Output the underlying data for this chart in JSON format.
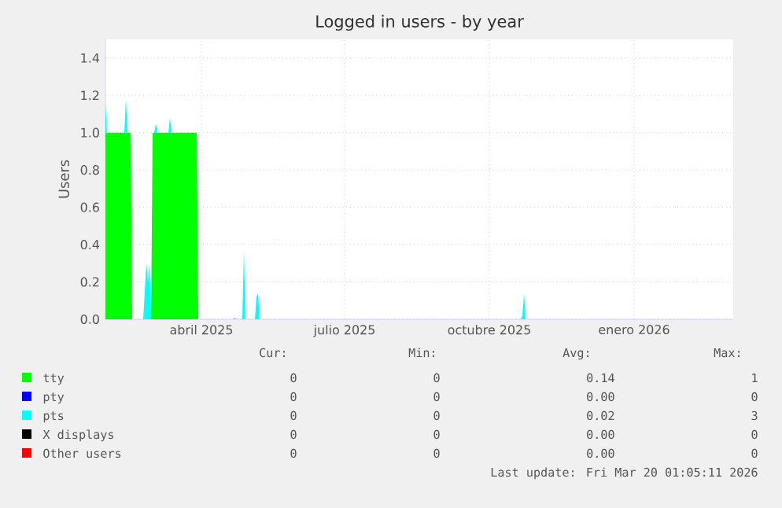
{
  "chart_data": {
    "type": "area",
    "stacked": true,
    "title": "Logged in users - by year",
    "ylabel": "Users",
    "x": [
      "2025-02-14",
      "2025-02-15",
      "2025-02-26",
      "2025-02-27",
      "2025-02-28",
      "2025-03-02",
      "2025-03-03",
      "2025-03-10",
      "2025-03-11",
      "2025-03-12",
      "2025-03-13",
      "2025-03-14",
      "2025-03-15",
      "2025-03-16",
      "2025-03-17",
      "2025-03-18",
      "2025-03-19",
      "2025-03-26",
      "2025-03-27",
      "2025-03-28",
      "2025-04-13",
      "2025-04-14",
      "2025-05-06",
      "2025-05-07",
      "2025-05-08",
      "2025-05-12",
      "2025-05-13",
      "2025-05-14",
      "2025-05-20",
      "2025-05-21",
      "2025-05-22",
      "2025-05-23",
      "2025-11-05",
      "2025-11-06",
      "2025-11-07",
      "2025-11-08",
      "2026-03-20"
    ],
    "series": [
      {
        "name": "tty",
        "color": "#00ff00",
        "values": [
          1,
          1,
          1,
          1,
          1,
          1,
          0,
          0,
          0,
          0,
          0,
          0,
          0,
          1,
          1,
          1,
          1,
          1,
          1,
          1,
          1,
          0,
          0,
          0,
          0,
          0,
          0,
          0,
          0,
          0,
          0,
          0,
          0,
          0,
          0,
          0,
          0
        ]
      },
      {
        "name": "pty",
        "color": "#0000ff",
        "values": [
          null,
          null,
          null,
          null,
          null,
          null,
          null,
          null,
          null,
          null,
          null,
          null,
          null,
          null,
          null,
          null,
          null,
          null,
          null,
          null,
          null,
          null,
          null,
          null,
          null,
          null,
          null,
          null,
          null,
          null,
          null,
          null,
          null,
          null,
          null,
          null,
          null
        ]
      },
      {
        "name": "pts",
        "color": "#00ffff",
        "values": [
          0.15,
          0,
          0,
          0.18,
          0,
          0,
          0,
          0,
          0.15,
          0.3,
          0.2,
          0.3,
          0,
          0,
          0,
          0.05,
          0,
          0,
          0.08,
          0,
          0,
          0,
          0,
          0.01,
          0,
          0,
          0.37,
          0,
          0,
          0.12,
          0.14,
          0,
          0,
          0.02,
          0.14,
          0,
          0
        ]
      },
      {
        "name": "X displays",
        "color": "#000000",
        "values": [
          null,
          null,
          null,
          null,
          null,
          null,
          null,
          null,
          null,
          null,
          null,
          null,
          null,
          null,
          null,
          null,
          null,
          null,
          null,
          null,
          null,
          null,
          null,
          null,
          null,
          null,
          null,
          null,
          null,
          null,
          null,
          null,
          null,
          null,
          null,
          null,
          null
        ]
      },
      {
        "name": "Other users",
        "color": "#ff0000",
        "values": [
          null,
          null,
          null,
          null,
          null,
          null,
          null,
          null,
          null,
          null,
          null,
          null,
          null,
          null,
          null,
          null,
          null,
          null,
          null,
          null,
          null,
          null,
          null,
          null,
          null,
          null,
          null,
          null,
          null,
          null,
          null,
          null,
          null,
          null,
          null,
          null,
          null
        ]
      }
    ],
    "xlim": [
      "2025-02-14",
      "2026-03-20"
    ],
    "xticks": [
      {
        "value": "2025-04-16",
        "label": "abril 2025"
      },
      {
        "value": "2025-07-16",
        "label": "julio 2025"
      },
      {
        "value": "2025-10-16",
        "label": "octubre 2025"
      },
      {
        "value": "2026-01-16",
        "label": "enero 2026"
      }
    ],
    "ylim": [
      0,
      1.5
    ],
    "yticks": [
      {
        "value": 0,
        "label": "0.0"
      },
      {
        "value": 0.2,
        "label": "0.2"
      },
      {
        "value": 0.4,
        "label": "0.4"
      },
      {
        "value": 0.6,
        "label": "0.6"
      },
      {
        "value": 0.8,
        "label": "0.8"
      },
      {
        "value": 1,
        "label": "1.0"
      },
      {
        "value": 1.2,
        "label": "1.2"
      },
      {
        "value": 1.4,
        "label": "1.4"
      }
    ],
    "grid": true,
    "legend": "bottom",
    "annotations": [
      "Cur:",
      "Min:",
      "Avg:",
      "Max:",
      "0",
      "0",
      "0.14",
      "1",
      "0",
      "0",
      "0.00",
      "0",
      "0",
      "0",
      "0.02",
      "3",
      "0",
      "0",
      "0.00",
      "0",
      "0",
      "0",
      "0.00",
      "0",
      "Last update: Fri Mar 20 01:05:11 2026"
    ]
  }
}
